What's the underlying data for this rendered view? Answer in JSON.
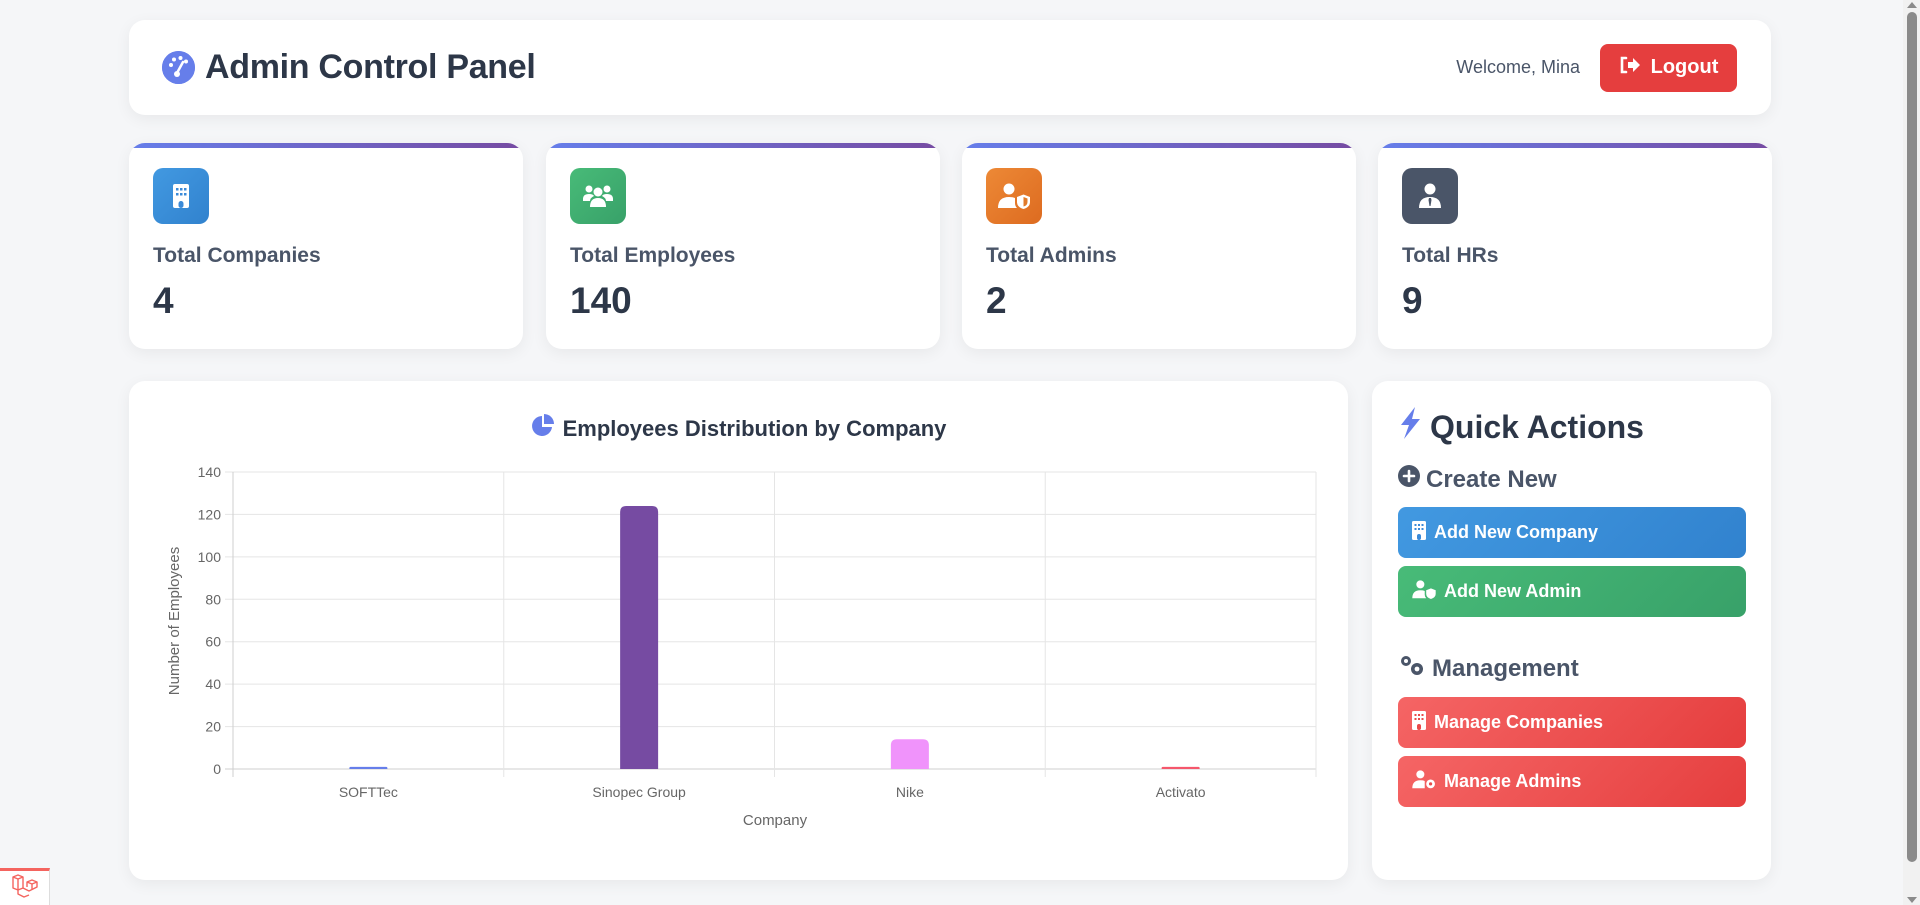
{
  "header": {
    "title": "Admin Control Panel",
    "icon": "gauge-icon",
    "welcome": "Welcome, Mina",
    "logout_label": "Logout",
    "logout_icon": "sign-out-icon"
  },
  "stats": [
    {
      "label": "Total Companies",
      "value": "4",
      "icon": "building-icon",
      "color": "#3182ce"
    },
    {
      "label": "Total Employees",
      "value": "140",
      "icon": "users-icon",
      "color": "#38a169"
    },
    {
      "label": "Total Admins",
      "value": "2",
      "icon": "user-shield-icon",
      "color": "#dd6b20"
    },
    {
      "label": "Total HRs",
      "value": "9",
      "icon": "user-tie-icon",
      "color": "#4a5568"
    }
  ],
  "chart": {
    "title": "Employees Distribution by Company",
    "icon": "chart-pie-icon"
  },
  "chart_data": {
    "type": "bar",
    "title": "Employees Distribution by Company",
    "categories": [
      "SOFTTec",
      "Sinopec Group",
      "Nike",
      "Activato"
    ],
    "values": [
      1,
      124,
      14,
      1
    ],
    "colors": [
      "#667eea",
      "#764ba2",
      "#f093fb",
      "#f5576c"
    ],
    "xlabel": "Company",
    "ylabel": "Number of Employees",
    "ylim": [
      0,
      140
    ],
    "yticks": [
      0,
      20,
      40,
      60,
      80,
      100,
      120,
      140
    ],
    "grid": true,
    "legend": "none"
  },
  "quick_actions": {
    "title": "Quick Actions",
    "title_icon": "bolt-icon",
    "sections": [
      {
        "title": "Create New",
        "icon": "plus-circle-icon",
        "buttons": [
          {
            "label": "Add New Company",
            "icon": "building-icon",
            "style": "blue"
          },
          {
            "label": "Add New Admin",
            "icon": "user-shield-icon",
            "style": "green"
          }
        ]
      },
      {
        "title": "Management",
        "icon": "cogs-icon",
        "buttons": [
          {
            "label": "Manage Companies",
            "icon": "building-icon",
            "style": "red"
          },
          {
            "label": "Manage Admins",
            "icon": "user-cog-icon",
            "style": "red"
          }
        ]
      }
    ]
  }
}
